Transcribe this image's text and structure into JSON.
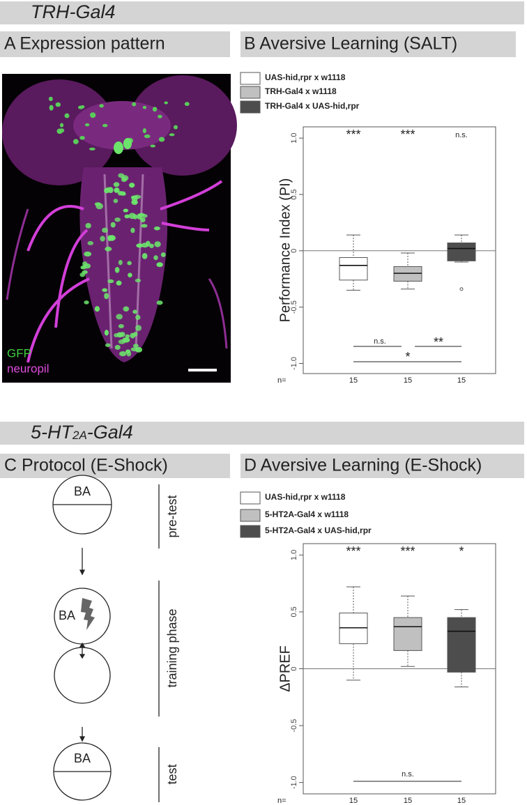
{
  "sections": [
    {
      "title": "TRH-Gal4"
    },
    {
      "title": {
        "pre": "5-HT",
        "sub": "2A",
        "post": "-Gal4"
      }
    }
  ],
  "panels": {
    "a": {
      "title": "A Expression pattern",
      "labels": [
        "GFP",
        "neuropil"
      ]
    },
    "b": {
      "title": "B Aversive Learning (SALT)"
    },
    "c": {
      "title": "C Protocol (E-Shock)",
      "odor": "BA",
      "phases": [
        "pre-test",
        "training phase",
        "test"
      ]
    },
    "d": {
      "title": "D Aversive Learning (E-Shock)"
    }
  },
  "chart_data": [
    {
      "type": "box",
      "y_label": "Performance Index (PI)",
      "ylim": [
        -1.09,
        1.1
      ],
      "yticks": [
        {
          "value": -1,
          "label": "-1.0"
        },
        -0.5,
        0,
        0.5,
        {
          "value": 1,
          "label": "1.0"
        }
      ],
      "reference_line": 0,
      "series": [
        {
          "name": "UAS-hid,rpr x w1118",
          "color": "#ffffff",
          "whisker_high": 0.14,
          "q3": -0.06,
          "median": -0.13,
          "q1": -0.26,
          "whisker_low": -0.35,
          "outliers": []
        },
        {
          "name": "TRH-Gal4 x w1118",
          "color": "#c0c0c0",
          "whisker_high": -0.02,
          "q3": -0.14,
          "median": -0.2,
          "q1": -0.27,
          "whisker_low": -0.34,
          "outliers": []
        },
        {
          "name": "TRH-Gal4 x UAS-hid,rpr",
          "color": "#4d4d4d",
          "whisker_high": 0.14,
          "q3": 0.07,
          "median": 0.02,
          "q1": -0.09,
          "whisker_low": -0.1,
          "outliers": [
            -0.34
          ]
        }
      ],
      "significance": [
        "***",
        "***",
        "n.s."
      ],
      "comparison_labels": [
        "n.s.",
        "**",
        "*"
      ],
      "n_label": "n=",
      "n": [
        15,
        15,
        15
      ]
    },
    {
      "type": "box",
      "y_label": "ΔPREF",
      "ylim": [
        -1.1,
        1.1
      ],
      "yticks": [
        {
          "value": -1,
          "label": "-1.0"
        },
        -0.5,
        0,
        0.5,
        {
          "value": 1,
          "label": "1.0"
        }
      ],
      "reference_line": 0,
      "series": [
        {
          "name": "UAS-hid,rpr x w1118",
          "color": "#ffffff",
          "whisker_high": 0.72,
          "q3": 0.49,
          "median": 0.36,
          "q1": 0.22,
          "whisker_low": -0.1,
          "outliers": []
        },
        {
          "name": "5-HT2A-Gal4 x w1118",
          "color": "#c0c0c0",
          "whisker_high": 0.64,
          "q3": 0.45,
          "median": 0.37,
          "q1": 0.16,
          "whisker_low": 0.02,
          "outliers": []
        },
        {
          "name": "5-HT2A-Gal4 x UAS-hid,rpr",
          "color": "#4d4d4d",
          "whisker_high": 0.52,
          "q3": 0.45,
          "median": 0.33,
          "q1": -0.03,
          "whisker_low": -0.16,
          "outliers": []
        }
      ],
      "significance": [
        "***",
        "***",
        "*"
      ],
      "comparison_labels": [
        "n.s."
      ],
      "n_label": "n=",
      "n": [
        15,
        15,
        15
      ]
    }
  ]
}
